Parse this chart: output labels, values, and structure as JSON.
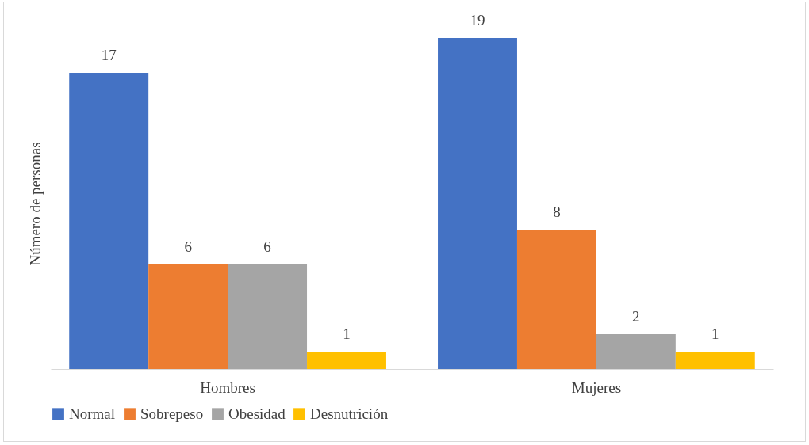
{
  "chart_data": {
    "type": "bar",
    "ylabel": "Número de personas",
    "categories": [
      "Hombres",
      "Mujeres"
    ],
    "series": [
      {
        "name": "Normal",
        "color": "#4472c4",
        "values": [
          17,
          19
        ]
      },
      {
        "name": "Sobrepeso",
        "color": "#ed7d31",
        "values": [
          6,
          8
        ]
      },
      {
        "name": "Obesidad",
        "color": "#a5a5a5",
        "values": [
          6,
          2
        ]
      },
      {
        "name": "Desnutrición",
        "color": "#ffc000",
        "values": [
          1,
          1
        ]
      }
    ],
    "data_labels": true,
    "legend": "bottom"
  }
}
